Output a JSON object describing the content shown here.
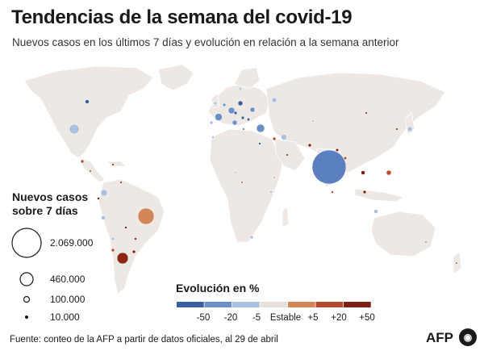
{
  "header": {
    "title": "Tendencias de la semana del covid-19",
    "subtitle": "Nuevos casos en los últimos 7 días y evolución en relación a la semana anterior"
  },
  "legend_size": {
    "title_line1": "Nuevos casos",
    "title_line2": "sobre 7 días",
    "items": [
      {
        "label": "2.069.000",
        "value": 2069000
      },
      {
        "label": "460.000",
        "value": 460000
      },
      {
        "label": "100.000",
        "value": 100000
      },
      {
        "label": "10.000",
        "value": 10000
      }
    ]
  },
  "legend_color": {
    "title": "Evolución en %",
    "labels": [
      "-50",
      "-20",
      "-5",
      "Estable",
      "+5",
      "+20",
      "+50"
    ],
    "colors": [
      "#3a5f9e",
      "#6b8fc7",
      "#a9c0e0",
      "#e8e0da",
      "#d2865a",
      "#b34a2c",
      "#7e1f14"
    ]
  },
  "footer": {
    "source": "Fuente: conteo de la AFP a partir de datos oficiales, al 29 de abril",
    "brand": "AFP",
    "brand_icon": "afp-logo-icon"
  },
  "colors": {
    "land": "#ede8e3",
    "land_stroke": "#ffffff"
  }
}
